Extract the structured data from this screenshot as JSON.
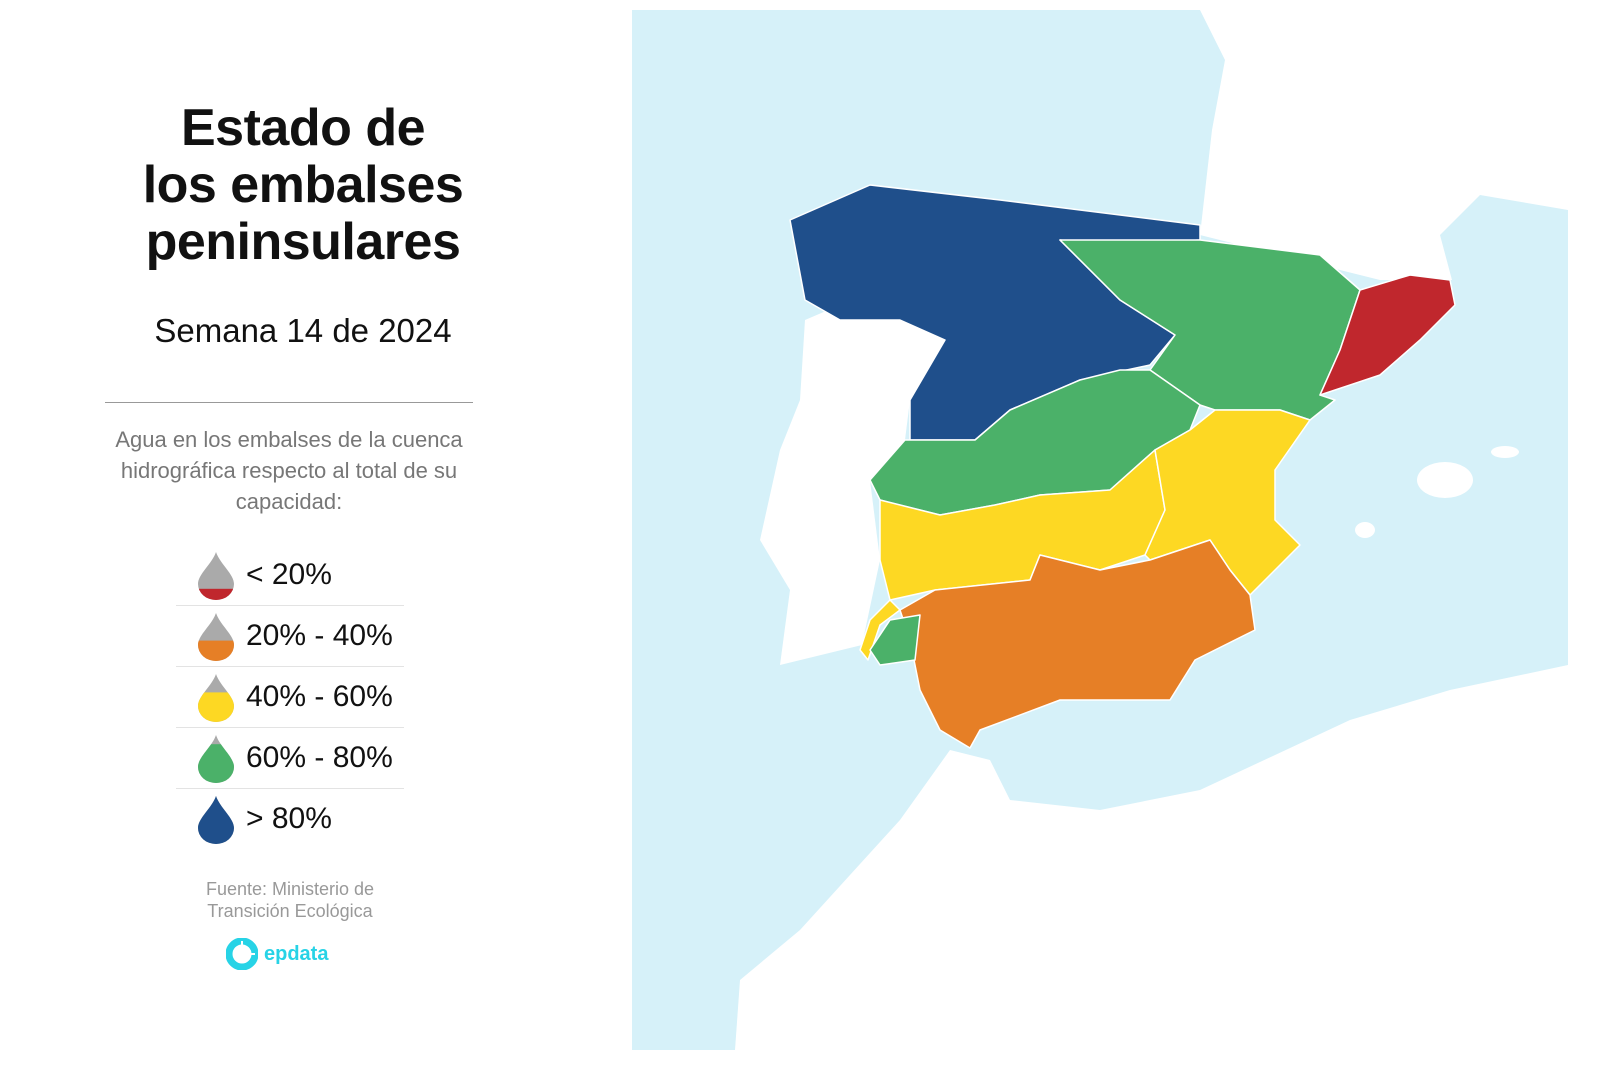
{
  "header": {
    "title_lines": [
      "Estado de",
      "los embalses",
      "peninsulares"
    ],
    "subtitle": "Semana 14 de 2024"
  },
  "description": "Agua en los embalses de la cuenca hidrográfica respecto al total de su capacidad:",
  "legend": [
    {
      "label": "< 20%",
      "color": "#c0272d",
      "fill_level": 0.2,
      "icon": "water-drop-icon"
    },
    {
      "label": "20% - 40%",
      "color": "#e67f26",
      "fill_level": 0.4,
      "icon": "water-drop-icon"
    },
    {
      "label": "40% - 60%",
      "color": "#fdd823",
      "fill_level": 0.6,
      "icon": "water-drop-icon"
    },
    {
      "label": "60% - 80%",
      "color": "#4bb169",
      "fill_level": 0.8,
      "icon": "water-drop-icon"
    },
    {
      "label": "> 80%",
      "color": "#1f4f8b",
      "fill_level": 1.0,
      "icon": "water-drop-icon"
    }
  ],
  "source": {
    "line1": "Fuente: Ministerio de",
    "line2": "Transición Ecológica"
  },
  "logo": {
    "text": "epdata",
    "color": "#27d3e6"
  },
  "map": {
    "sea_color": "#d6f1f9",
    "basins": [
      {
        "group": "north",
        "category": "> 80%",
        "color": "#1f4f8b"
      },
      {
        "group": "ebro",
        "category": "60% - 80%",
        "color": "#4bb169"
      },
      {
        "group": "catalonia",
        "category": "< 20%",
        "color": "#c0272d"
      },
      {
        "group": "tajo",
        "category": "60% - 80%",
        "color": "#4bb169"
      },
      {
        "group": "guadiana",
        "category": "40% - 60%",
        "color": "#fdd823"
      },
      {
        "group": "jucar",
        "category": "40% - 60%",
        "color": "#fdd823"
      },
      {
        "group": "south",
        "category": "20% - 40%",
        "color": "#e67f26"
      },
      {
        "group": "tinto-odiel",
        "category": "60% - 80%",
        "color": "#4bb169"
      }
    ]
  }
}
